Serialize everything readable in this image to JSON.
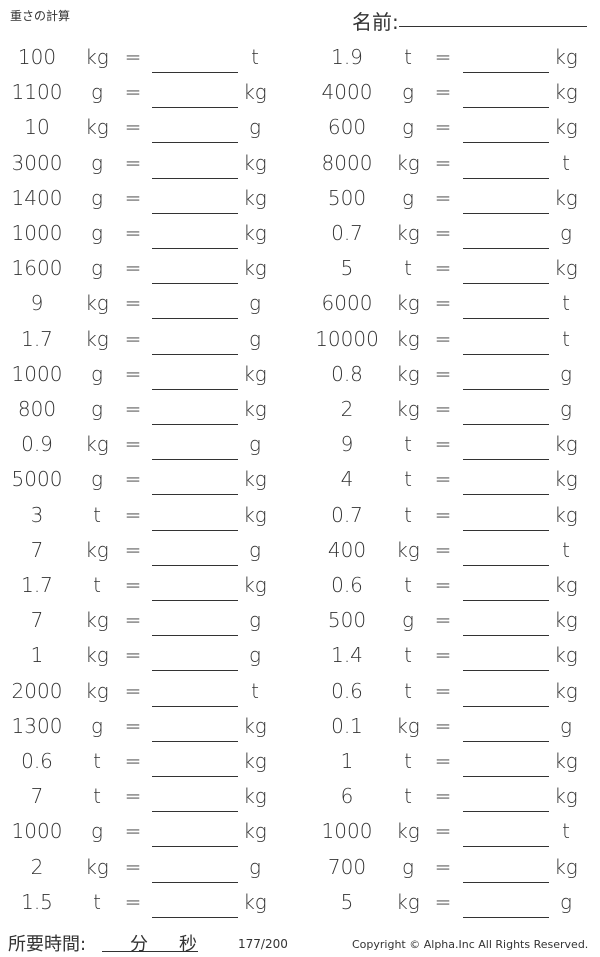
{
  "header": {
    "title": "重さの計算",
    "name_label": "名前:"
  },
  "equals": "=",
  "left": [
    [
      "100",
      "kg",
      "t"
    ],
    [
      "1100",
      "g",
      "kg"
    ],
    [
      "10",
      "kg",
      "g"
    ],
    [
      "3000",
      "g",
      "kg"
    ],
    [
      "1400",
      "g",
      "kg"
    ],
    [
      "1000",
      "g",
      "kg"
    ],
    [
      "1600",
      "g",
      "kg"
    ],
    [
      "9",
      "kg",
      "g"
    ],
    [
      "1.7",
      "kg",
      "g"
    ],
    [
      "1000",
      "g",
      "kg"
    ],
    [
      "800",
      "g",
      "kg"
    ],
    [
      "0.9",
      "kg",
      "g"
    ],
    [
      "5000",
      "g",
      "kg"
    ],
    [
      "3",
      "t",
      "kg"
    ],
    [
      "7",
      "kg",
      "g"
    ],
    [
      "1.7",
      "t",
      "kg"
    ],
    [
      "7",
      "kg",
      "g"
    ],
    [
      "1",
      "kg",
      "g"
    ],
    [
      "2000",
      "kg",
      "t"
    ],
    [
      "1300",
      "g",
      "kg"
    ],
    [
      "0.6",
      "t",
      "kg"
    ],
    [
      "7",
      "t",
      "kg"
    ],
    [
      "1000",
      "g",
      "kg"
    ],
    [
      "2",
      "kg",
      "g"
    ],
    [
      "1.5",
      "t",
      "kg"
    ]
  ],
  "right": [
    [
      "1.9",
      "t",
      "kg"
    ],
    [
      "4000",
      "g",
      "kg"
    ],
    [
      "600",
      "g",
      "kg"
    ],
    [
      "8000",
      "kg",
      "t"
    ],
    [
      "500",
      "g",
      "kg"
    ],
    [
      "0.7",
      "kg",
      "g"
    ],
    [
      "5",
      "t",
      "kg"
    ],
    [
      "6000",
      "kg",
      "t"
    ],
    [
      "10000",
      "kg",
      "t"
    ],
    [
      "0.8",
      "kg",
      "g"
    ],
    [
      "2",
      "kg",
      "g"
    ],
    [
      "9",
      "t",
      "kg"
    ],
    [
      "4",
      "t",
      "kg"
    ],
    [
      "0.7",
      "t",
      "kg"
    ],
    [
      "400",
      "kg",
      "t"
    ],
    [
      "0.6",
      "t",
      "kg"
    ],
    [
      "500",
      "g",
      "kg"
    ],
    [
      "1.4",
      "t",
      "kg"
    ],
    [
      "0.6",
      "t",
      "kg"
    ],
    [
      "0.1",
      "kg",
      "g"
    ],
    [
      "1",
      "t",
      "kg"
    ],
    [
      "6",
      "t",
      "kg"
    ],
    [
      "1000",
      "kg",
      "t"
    ],
    [
      "700",
      "g",
      "kg"
    ],
    [
      "5",
      "kg",
      "g"
    ]
  ],
  "footer": {
    "time_label": "所要時間:",
    "minutes": "分",
    "seconds": "秒",
    "page": "177/200",
    "copyright": "Copyright © Alpha.Inc All Rights Reserved."
  }
}
